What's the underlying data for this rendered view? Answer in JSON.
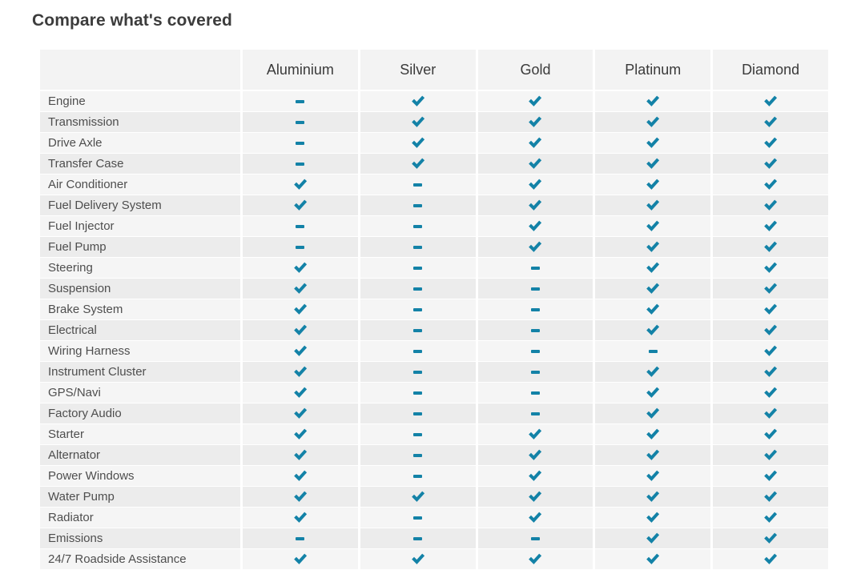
{
  "title": "Compare what's covered",
  "colors": {
    "accent_check": "#1382a7",
    "header_bg": "#f3f3f3",
    "row_light_bg": "#f5f5f5",
    "row_dark_bg": "#ececec",
    "title_text": "#3c3c3c",
    "label_text": "#4e4e4e"
  },
  "icons": {
    "covered": "check-icon",
    "not_covered": "dash-icon"
  },
  "table": {
    "plans": [
      "Aluminium",
      "Silver",
      "Gold",
      "Platinum",
      "Diamond"
    ],
    "rows": [
      {
        "label": "Engine",
        "coverage": [
          "dash",
          "check",
          "check",
          "check",
          "check"
        ]
      },
      {
        "label": "Transmission",
        "coverage": [
          "dash",
          "check",
          "check",
          "check",
          "check"
        ]
      },
      {
        "label": "Drive Axle",
        "coverage": [
          "dash",
          "check",
          "check",
          "check",
          "check"
        ]
      },
      {
        "label": "Transfer Case",
        "coverage": [
          "dash",
          "check",
          "check",
          "check",
          "check"
        ]
      },
      {
        "label": "Air Conditioner",
        "coverage": [
          "check",
          "dash",
          "check",
          "check",
          "check"
        ]
      },
      {
        "label": "Fuel Delivery System",
        "coverage": [
          "check",
          "dash",
          "check",
          "check",
          "check"
        ]
      },
      {
        "label": "Fuel Injector",
        "coverage": [
          "dash",
          "dash",
          "check",
          "check",
          "check"
        ]
      },
      {
        "label": "Fuel Pump",
        "coverage": [
          "dash",
          "dash",
          "check",
          "check",
          "check"
        ]
      },
      {
        "label": "Steering",
        "coverage": [
          "check",
          "dash",
          "dash",
          "check",
          "check"
        ]
      },
      {
        "label": "Suspension",
        "coverage": [
          "check",
          "dash",
          "dash",
          "check",
          "check"
        ]
      },
      {
        "label": "Brake System",
        "coverage": [
          "check",
          "dash",
          "dash",
          "check",
          "check"
        ]
      },
      {
        "label": "Electrical",
        "coverage": [
          "check",
          "dash",
          "dash",
          "check",
          "check"
        ]
      },
      {
        "label": "Wiring Harness",
        "coverage": [
          "check",
          "dash",
          "dash",
          "dash",
          "check"
        ]
      },
      {
        "label": "Instrument Cluster",
        "coverage": [
          "check",
          "dash",
          "dash",
          "check",
          "check"
        ]
      },
      {
        "label": "GPS/Navi",
        "coverage": [
          "check",
          "dash",
          "dash",
          "check",
          "check"
        ]
      },
      {
        "label": "Factory Audio",
        "coverage": [
          "check",
          "dash",
          "dash",
          "check",
          "check"
        ]
      },
      {
        "label": "Starter",
        "coverage": [
          "check",
          "dash",
          "check",
          "check",
          "check"
        ]
      },
      {
        "label": "Alternator",
        "coverage": [
          "check",
          "dash",
          "check",
          "check",
          "check"
        ]
      },
      {
        "label": "Power Windows",
        "coverage": [
          "check",
          "dash",
          "check",
          "check",
          "check"
        ]
      },
      {
        "label": "Water Pump",
        "coverage": [
          "check",
          "check",
          "check",
          "check",
          "check"
        ]
      },
      {
        "label": "Radiator",
        "coverage": [
          "check",
          "dash",
          "check",
          "check",
          "check"
        ]
      },
      {
        "label": "Emissions",
        "coverage": [
          "dash",
          "dash",
          "dash",
          "check",
          "check"
        ]
      },
      {
        "label": "24/7 Roadside Assistance",
        "coverage": [
          "check",
          "check",
          "check",
          "check",
          "check"
        ]
      }
    ]
  }
}
